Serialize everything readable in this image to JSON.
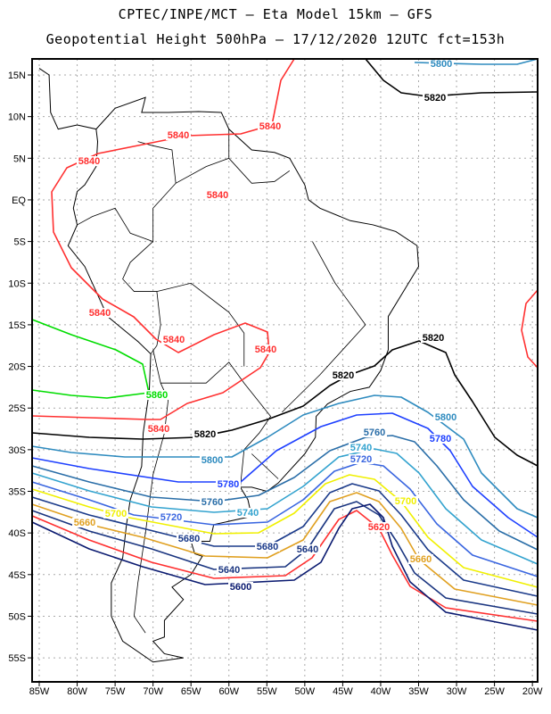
{
  "header": {
    "line1": "CPTEC/INPE/MCT –  Eta Model 15km – GFS",
    "line2": "Geopotential Height 500hPa – 17/12/2020 12UTC fct=153h"
  },
  "axes": {
    "lat_labels": [
      "15N",
      "10N",
      "5N",
      "EQ",
      "5S",
      "10S",
      "15S",
      "20S",
      "25S",
      "30S",
      "35S",
      "40S",
      "45S",
      "50S",
      "55S"
    ],
    "lon_labels": [
      "85W",
      "80W",
      "75W",
      "70W",
      "65W",
      "60W",
      "55W",
      "50W",
      "45W",
      "40W",
      "35W",
      "30W",
      "25W",
      "20W"
    ]
  },
  "contour_colors": {
    "5860": "#00dd00",
    "5840": "#ff3030",
    "5820": "#000000",
    "5800": "#2e8bbf",
    "5780": "#1e40ff",
    "5760": "#2a6ea8",
    "5740": "#33a3cf",
    "5720": "#3a66e0",
    "5700": "#f0f000",
    "5680": "#1a3a8a",
    "5660": "#e0a020",
    "5640": "#1a3580",
    "5620": "#ff3030",
    "5600": "#0a1a70"
  },
  "contour_labels": [
    {
      "text": "5800",
      "color": "#2e8bbf"
    },
    {
      "text": "5820",
      "color": "#000000"
    },
    {
      "text": "5840",
      "color": "#ff3030"
    },
    {
      "text": "5840",
      "color": "#ff3030"
    },
    {
      "text": "5840",
      "color": "#ff3030"
    },
    {
      "text": "5840",
      "color": "#ff3030"
    },
    {
      "text": "5840",
      "color": "#ff3030"
    },
    {
      "text": "5840",
      "color": "#ff3030"
    },
    {
      "text": "5840",
      "color": "#ff3030"
    },
    {
      "text": "5820",
      "color": "#000000"
    },
    {
      "text": "5820",
      "color": "#000000"
    },
    {
      "text": "5860",
      "color": "#00dd00"
    },
    {
      "text": "5840",
      "color": "#ff3030"
    },
    {
      "text": "5820",
      "color": "#000000"
    },
    {
      "text": "5800",
      "color": "#2e8bbf"
    },
    {
      "text": "5800",
      "color": "#2e8bbf"
    },
    {
      "text": "5780",
      "color": "#1e40ff"
    },
    {
      "text": "5780",
      "color": "#1e40ff"
    },
    {
      "text": "5760",
      "color": "#2a6ea8"
    },
    {
      "text": "5760",
      "color": "#2a6ea8"
    },
    {
      "text": "5740",
      "color": "#33a3cf"
    },
    {
      "text": "5740",
      "color": "#33a3cf"
    },
    {
      "text": "5720",
      "color": "#3a66e0"
    },
    {
      "text": "5720",
      "color": "#3a66e0"
    },
    {
      "text": "5700",
      "color": "#f0f000"
    },
    {
      "text": "5700",
      "color": "#f0f000"
    },
    {
      "text": "5680",
      "color": "#1a3a8a"
    },
    {
      "text": "5680",
      "color": "#1a3a8a"
    },
    {
      "text": "5660",
      "color": "#e0a020"
    },
    {
      "text": "5660",
      "color": "#e0a020"
    },
    {
      "text": "5640",
      "color": "#1a3580"
    },
    {
      "text": "5640",
      "color": "#1a3580"
    },
    {
      "text": "5620",
      "color": "#ff3030"
    },
    {
      "text": "5600",
      "color": "#0a1a70"
    }
  ]
}
